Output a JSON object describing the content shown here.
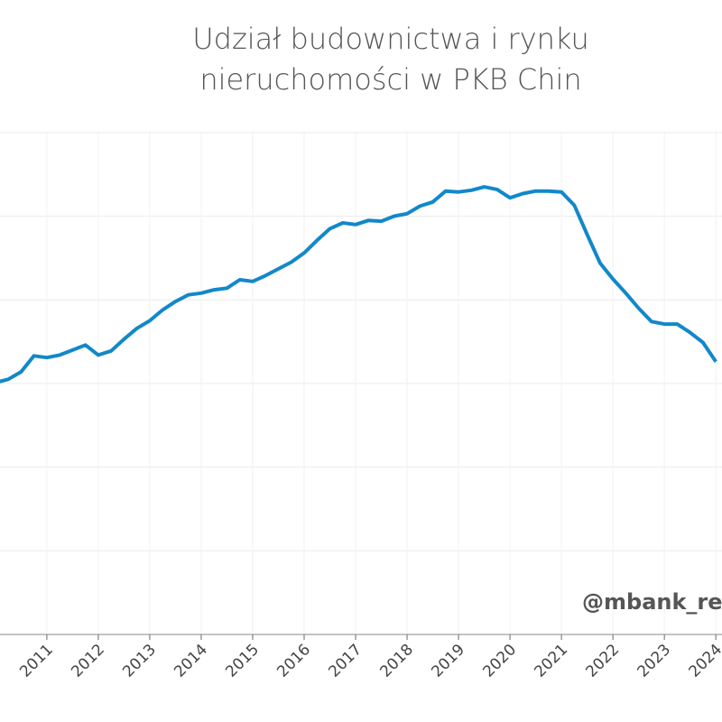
{
  "chart_data": {
    "type": "line",
    "title": [
      "Udział budownictwa i rynku",
      "nieruchomości w PKB Chin"
    ],
    "watermark": "@mbank_research",
    "x": [
      2010.0,
      2010.25,
      2010.5,
      2010.75,
      2011.0,
      2011.25,
      2011.5,
      2011.75,
      2012.0,
      2012.25,
      2012.5,
      2012.75,
      2013.0,
      2013.25,
      2013.5,
      2013.75,
      2014.0,
      2014.25,
      2014.5,
      2014.75,
      2015.0,
      2015.25,
      2015.5,
      2015.75,
      2016.0,
      2016.25,
      2016.5,
      2016.75,
      2017.0,
      2017.25,
      2017.5,
      2017.75,
      2018.0,
      2018.25,
      2018.5,
      2018.75,
      2019.0,
      2019.25,
      2019.5,
      2019.75,
      2020.0,
      2020.25,
      2020.5,
      2020.75,
      2021.0,
      2021.25,
      2021.5,
      2021.75,
      2022.0,
      2022.25,
      2022.5,
      2022.75,
      2023.0,
      2023.25,
      2023.5,
      2023.75,
      2024.0
    ],
    "series": [
      {
        "color": "#1288c9",
        "values": [
          12.01,
          12.05,
          12.14,
          12.33,
          12.31,
          12.34,
          12.4,
          12.46,
          12.34,
          12.39,
          12.53,
          12.66,
          12.75,
          12.88,
          12.98,
          13.06,
          13.08,
          13.12,
          13.14,
          13.24,
          13.22,
          13.29,
          13.37,
          13.45,
          13.56,
          13.71,
          13.85,
          13.92,
          13.9,
          13.95,
          13.94,
          14.0,
          14.03,
          14.12,
          14.17,
          14.3,
          14.29,
          14.31,
          14.35,
          14.32,
          14.22,
          14.27,
          14.3,
          14.3,
          14.29,
          14.13,
          13.78,
          13.44,
          13.25,
          13.08,
          12.9,
          12.74,
          12.71,
          12.71,
          12.61,
          12.49,
          12.26
        ]
      }
    ],
    "xlim": [
      2010.09,
      2024.12
    ],
    "xticks": [
      2011,
      2012,
      2013,
      2014,
      2015,
      2016,
      2017,
      2018,
      2019,
      2020,
      2021,
      2022,
      2023,
      2024
    ],
    "ylim": [
      9,
      15.02
    ],
    "yticks": [
      9,
      10,
      11,
      12,
      13,
      14,
      15
    ],
    "grid": true
  }
}
